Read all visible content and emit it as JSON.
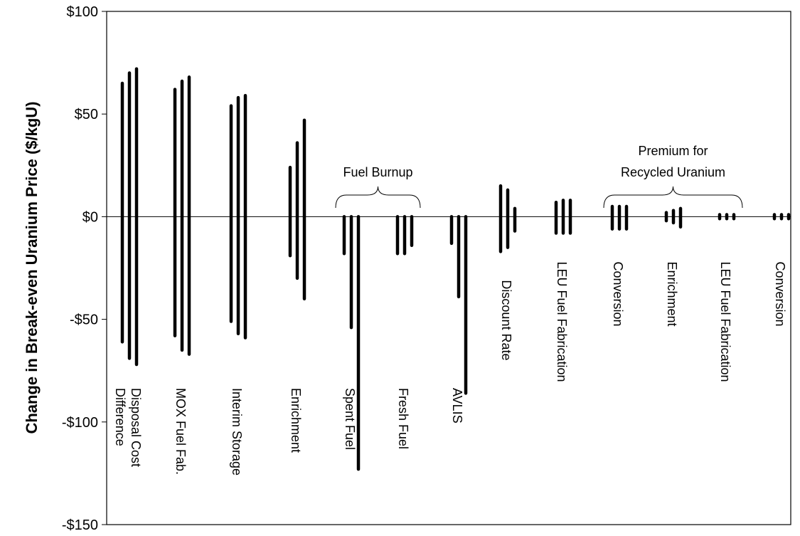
{
  "chart_data": {
    "type": "range-bar",
    "title": "",
    "xlabel": "",
    "ylabel": "Change in Break-even Uranium Price ($/kgU)",
    "ylim": [
      -150,
      100
    ],
    "yticks": [
      100,
      50,
      0,
      -50,
      -100,
      -150
    ],
    "ytick_labels": [
      "$100",
      "$50",
      "$0",
      "-$50",
      "-$100",
      "-$150"
    ],
    "grid": false,
    "groups": [
      {
        "label": [
          "Disposal Cost",
          "Difference"
        ],
        "bars": [
          [
            -61,
            65
          ],
          [
            -69,
            70
          ],
          [
            -72,
            72
          ]
        ]
      },
      {
        "label": [
          "MOX Fuel Fab."
        ],
        "bars": [
          [
            -58,
            62
          ],
          [
            -65,
            66
          ],
          [
            -67,
            68
          ]
        ]
      },
      {
        "label": [
          "Interim Storage"
        ],
        "bars": [
          [
            -51,
            54
          ],
          [
            -57,
            58
          ],
          [
            -59,
            59
          ]
        ]
      },
      {
        "label": [
          "Enrichment"
        ],
        "bars": [
          [
            -19,
            24
          ],
          [
            -30,
            36
          ],
          [
            -40,
            47
          ]
        ]
      },
      {
        "label": [
          "Spent Fuel"
        ],
        "bars": [
          [
            -18,
            0
          ],
          [
            -54,
            0
          ],
          [
            -123,
            0
          ]
        ]
      },
      {
        "label": [
          "Fresh Fuel"
        ],
        "bars": [
          [
            -18,
            0
          ],
          [
            -18,
            0
          ],
          [
            -14,
            0
          ]
        ]
      },
      {
        "label": [
          "AVLIS"
        ],
        "bars": [
          [
            -13,
            0
          ],
          [
            -39,
            0
          ],
          [
            -86,
            0
          ]
        ]
      },
      {
        "label": [
          "Discount Rate"
        ],
        "bars": [
          [
            -17,
            15
          ],
          [
            -15,
            13
          ],
          [
            -7,
            4
          ]
        ]
      },
      {
        "label": [
          "LEU Fuel Fabrication"
        ],
        "bars": [
          [
            -8,
            7
          ],
          [
            -8,
            8
          ],
          [
            -8,
            8
          ]
        ]
      },
      {
        "label": [
          "Conversion"
        ],
        "bars": [
          [
            -6,
            5
          ],
          [
            -6,
            5
          ],
          [
            -6,
            5
          ]
        ]
      },
      {
        "label": [
          "Enrichment"
        ],
        "bars": [
          [
            -2,
            2
          ],
          [
            -3,
            3
          ],
          [
            -5,
            4
          ]
        ]
      },
      {
        "label": [
          "LEU Fuel Fabrication"
        ],
        "bars": [
          [
            -1,
            1
          ],
          [
            -1,
            1
          ],
          [
            -1,
            1
          ]
        ]
      },
      {
        "label": [
          "Conversion"
        ],
        "bars": [
          [
            -1,
            1
          ],
          [
            -1,
            1
          ],
          [
            -1,
            1
          ]
        ]
      }
    ],
    "annotations": [
      {
        "text": [
          "Fuel Burnup"
        ],
        "span_groups": [
          4,
          5
        ]
      },
      {
        "text": [
          "Premium for",
          "Recycled Uranium"
        ],
        "span_groups": [
          9,
          11
        ]
      }
    ]
  }
}
